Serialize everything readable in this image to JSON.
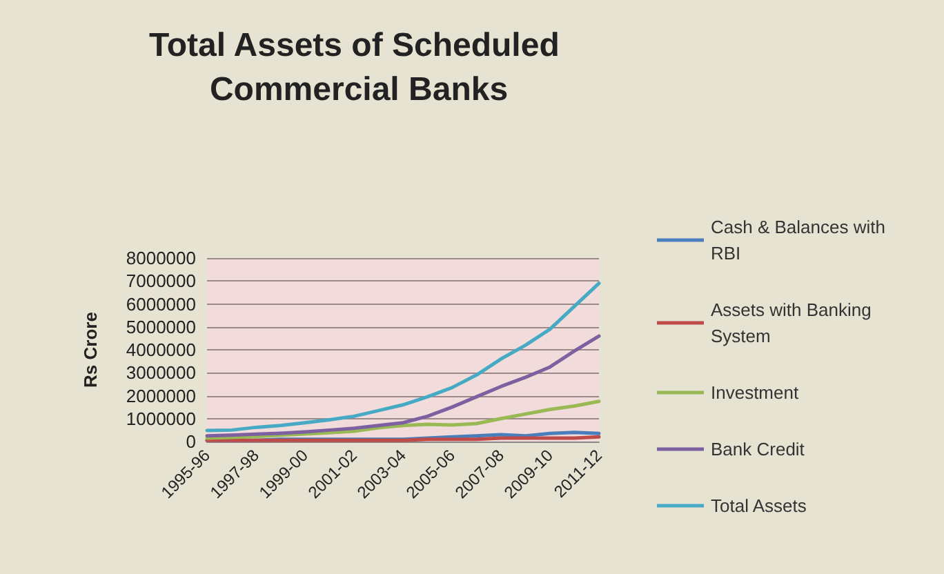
{
  "chart_data": {
    "type": "line",
    "title": "Total Assets of Scheduled Commercial Banks",
    "ylabel": "Rs Crore",
    "categories": [
      "1995-96",
      null,
      "1997-98",
      null,
      "1999-00",
      null,
      "2001-02",
      null,
      "2003-04",
      null,
      "2005-06",
      null,
      "2007-08",
      null,
      "2009-10",
      null,
      "2011-12"
    ],
    "series": [
      {
        "name": "Cash & Balances with RBI",
        "color": "#4a7ebb",
        "values": [
          50000,
          50000,
          50000,
          100000,
          100000,
          100000,
          100000,
          100000,
          100000,
          150000,
          200000,
          250000,
          300000,
          250000,
          350000,
          400000,
          350000
        ]
      },
      {
        "name": "Assets with Banking System",
        "color": "#be4b48",
        "values": [
          50000,
          50000,
          50000,
          50000,
          50000,
          50000,
          50000,
          50000,
          50000,
          100000,
          100000,
          100000,
          150000,
          150000,
          150000,
          150000,
          200000
        ]
      },
      {
        "name": "Investment",
        "color": "#98b954",
        "values": [
          150000,
          180000,
          220000,
          280000,
          330000,
          380000,
          450000,
          600000,
          700000,
          750000,
          720000,
          780000,
          1000000,
          1200000,
          1400000,
          1550000,
          1750000
        ]
      },
      {
        "name": "Bank Credit",
        "color": "#7d60a0",
        "values": [
          250000,
          280000,
          320000,
          360000,
          420000,
          500000,
          580000,
          700000,
          820000,
          1100000,
          1500000,
          1950000,
          2400000,
          2800000,
          3250000,
          3950000,
          4600000
        ]
      },
      {
        "name": "Total Assets",
        "color": "#46aac5",
        "values": [
          480000,
          500000,
          620000,
          700000,
          820000,
          950000,
          1100000,
          1350000,
          1600000,
          1950000,
          2350000,
          2900000,
          3600000,
          4200000,
          4900000,
          5900000,
          6900000
        ]
      }
    ],
    "ylim": [
      0,
      8000000
    ],
    "yticks": [
      0,
      1000000,
      2000000,
      3000000,
      4000000,
      5000000,
      6000000,
      7000000,
      8000000
    ],
    "grid": "y",
    "legend": "right",
    "marker": "none",
    "line_style": "solid"
  }
}
